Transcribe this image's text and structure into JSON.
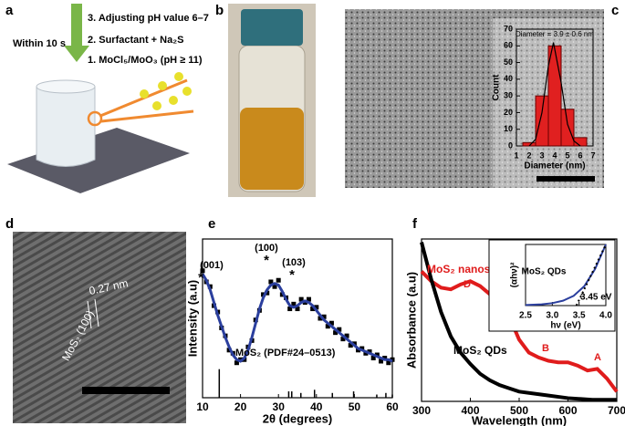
{
  "panel_labels": [
    "a",
    "b",
    "c",
    "d",
    "e",
    "f"
  ],
  "schematic": {
    "steps": [
      "3. Adjusting pH value 6–7",
      "2. Surfactant + Na₂S",
      "1. MoCl₅/MoO₃ (pH ≥ 11)"
    ],
    "time": "Within 10 s"
  },
  "hrtem": {
    "spacing": "0.27 nm",
    "plane": "MoS₂ (100)"
  },
  "chart_data": [
    {
      "type": "histogram",
      "title": "Diameter = 3.9 ± 0.6 nm",
      "xlabel": "Diameter (nm)",
      "ylabel": "Count",
      "bins": [
        1.5,
        2.5,
        3.5,
        4.5,
        5.5,
        6.5
      ],
      "counts": [
        2,
        30,
        60,
        22,
        5
      ],
      "color": "#e02020",
      "curve": {
        "x": [
          2,
          2.5,
          3,
          3.5,
          3.9,
          4.5,
          5,
          5.5,
          6
        ],
        "values": [
          0,
          4,
          20,
          48,
          62,
          38,
          13,
          3,
          0
        ],
        "color": "#000000"
      },
      "xlim": [
        1,
        7
      ],
      "xticks": [
        1,
        2,
        3,
        4,
        5,
        6,
        7
      ],
      "ylim": [
        0,
        70
      ],
      "yticks": [
        0,
        10,
        20,
        30,
        40,
        50,
        60,
        70
      ]
    },
    {
      "type": "line",
      "xlabel": "2θ (degrees)",
      "ylabel": "Intensity (a.u)",
      "x": [
        10,
        11,
        12,
        13,
        14,
        15,
        16,
        17,
        18,
        19,
        20,
        21,
        22,
        23,
        24,
        25,
        26,
        27,
        28,
        29,
        30,
        31,
        32,
        33,
        34,
        35,
        36,
        37,
        38,
        39,
        40,
        41,
        42,
        43,
        44,
        45,
        46,
        47,
        48,
        49,
        50,
        51,
        52,
        53,
        54,
        55,
        56,
        57,
        58,
        59,
        60
      ],
      "series": [
        {
          "color": "#000000",
          "style": "markers",
          "values": [
            80,
            73,
            70,
            58,
            54,
            44,
            39,
            30,
            28,
            22,
            24,
            24,
            32,
            36,
            49,
            55,
            65,
            66,
            73,
            70,
            74,
            65,
            63,
            56,
            59,
            56,
            62,
            60,
            62,
            56,
            57,
            50,
            51,
            45,
            47,
            41,
            43,
            37,
            39,
            33,
            34,
            30,
            31,
            28,
            29,
            25,
            27,
            23,
            25,
            22,
            24
          ]
        },
        {
          "color": "#2b3f9e",
          "style": "line",
          "values": [
            78,
            74,
            68,
            60,
            52,
            45,
            38,
            32,
            27,
            24,
            23,
            25,
            30,
            38,
            47,
            56,
            63,
            68,
            71,
            72,
            71,
            67,
            62,
            58,
            57,
            58,
            60,
            61,
            60,
            58,
            55,
            52,
            49,
            47,
            45,
            43,
            41,
            39,
            37,
            35,
            33,
            31,
            30,
            29,
            28,
            27,
            26,
            25,
            24,
            24,
            23
          ]
        }
      ],
      "reference": {
        "label": "MoS₂ (PDF#24–0513)",
        "x": [
          14.4,
          32.7,
          33.5,
          35.9,
          39.5,
          44.2,
          49.8,
          55.9,
          58.3,
          60
        ],
        "values": [
          18,
          4,
          4,
          3,
          5,
          3,
          4,
          2,
          3,
          2
        ]
      },
      "peaks": [
        "(001)",
        "(100)",
        "(103)"
      ],
      "marker": "*",
      "xlim": [
        10,
        60
      ],
      "xticks": [
        10,
        20,
        30,
        40,
        50,
        60
      ],
      "ylim": [
        0,
        100
      ]
    },
    {
      "type": "line",
      "xlabel": "Wavelength (nm)",
      "ylabel": "Absorbance (a.u)",
      "series": [
        {
          "name": "MoS₂ nanosheets",
          "color": "#e01c1c",
          "x": [
            300,
            320,
            340,
            360,
            380,
            400,
            420,
            440,
            460,
            480,
            500,
            520,
            540,
            560,
            580,
            600,
            620,
            640,
            660,
            680,
            700
          ],
          "values": [
            80,
            74,
            70,
            69,
            72,
            74,
            71,
            66,
            63,
            52,
            38,
            30,
            27,
            25,
            24,
            24,
            22,
            19,
            20,
            14,
            6
          ]
        },
        {
          "name": "MoS₂ QDs",
          "color": "#000000",
          "x": [
            300,
            320,
            340,
            360,
            380,
            400,
            420,
            440,
            460,
            480,
            500,
            550,
            600,
            650,
            700
          ],
          "values": [
            98,
            75,
            55,
            40,
            30,
            23,
            17,
            13,
            10,
            8,
            6,
            4,
            2,
            1,
            1
          ]
        }
      ],
      "peaks": [
        "D",
        "C",
        "B",
        "A"
      ],
      "xlim": [
        300,
        700
      ],
      "xticks": [
        300,
        400,
        500,
        600,
        700
      ],
      "ylim": [
        0,
        100
      ]
    },
    {
      "type": "line",
      "xlabel": "hν (eV)",
      "ylabel": "(αhν)²",
      "label": "MoS₂ QDs",
      "gap": "3.45 eV",
      "series": [
        {
          "color": "#2b3f9e",
          "style": "line",
          "x": [
            2.5,
            2.8,
            3.0,
            3.2,
            3.4,
            3.6,
            3.8,
            4.0
          ],
          "values": [
            1,
            2,
            4,
            8,
            16,
            32,
            60,
            100
          ]
        },
        {
          "color": "#000000",
          "style": "dotted",
          "x": [
            3.45,
            4.0
          ],
          "values": [
            0,
            100
          ]
        }
      ],
      "xlim": [
        2.5,
        4.0
      ],
      "xticks": [
        {
          "value": 2.5,
          "label": "2.5"
        },
        {
          "value": 3.0,
          "label": "3.0"
        },
        {
          "value": 3.5,
          "label": "3.5"
        },
        {
          "value": 4.0,
          "label": "4.0"
        }
      ],
      "ylim": [
        0,
        100
      ]
    }
  ]
}
